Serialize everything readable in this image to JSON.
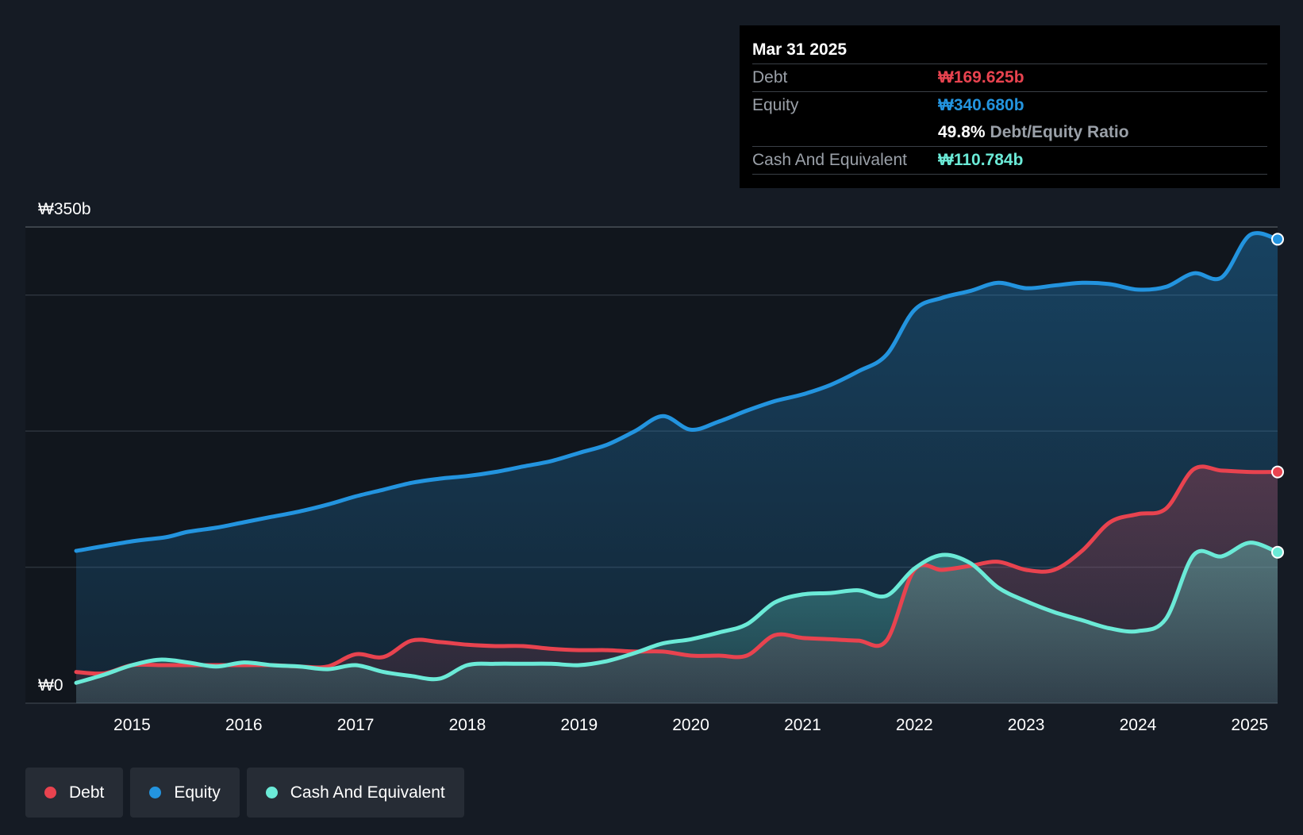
{
  "chart_data": {
    "type": "area",
    "title": "",
    "y_axis_labels": [
      "₩350b",
      "₩0"
    ],
    "ylim": [
      0,
      350
    ],
    "x_tick_labels": [
      "2015",
      "2016",
      "2017",
      "2018",
      "2019",
      "2020",
      "2021",
      "2022",
      "2023",
      "2024",
      "2025"
    ],
    "xlim": [
      2014.5,
      2025.25
    ],
    "series": [
      {
        "name": "Equity",
        "color": "#2394df",
        "x": [
          2014.5,
          2015.0,
          2015.3,
          2015.5,
          2015.75,
          2016.0,
          2016.25,
          2016.5,
          2016.75,
          2017.0,
          2017.25,
          2017.5,
          2017.75,
          2018.0,
          2018.25,
          2018.5,
          2018.75,
          2019.0,
          2019.25,
          2019.5,
          2019.75,
          2020.0,
          2020.25,
          2020.5,
          2020.75,
          2021.0,
          2021.25,
          2021.5,
          2021.75,
          2022.0,
          2022.25,
          2022.5,
          2022.75,
          2023.0,
          2023.25,
          2023.5,
          2023.75,
          2024.0,
          2024.25,
          2024.5,
          2024.75,
          2025.0,
          2025.25
        ],
        "values": [
          112,
          119,
          122,
          126,
          129,
          133,
          137,
          141,
          146,
          152,
          157,
          162,
          165,
          167,
          170,
          174,
          178,
          184,
          190,
          200,
          211,
          201,
          207,
          215,
          222,
          227,
          234,
          244,
          256,
          289,
          298,
          303,
          309,
          305,
          307,
          309,
          308,
          304,
          306,
          316,
          313,
          344,
          341
        ]
      },
      {
        "name": "Debt",
        "color": "#e8434f",
        "x": [
          2014.5,
          2014.75,
          2015.0,
          2015.25,
          2015.5,
          2015.75,
          2016.0,
          2016.25,
          2016.5,
          2016.75,
          2017.0,
          2017.25,
          2017.5,
          2017.75,
          2018.0,
          2018.25,
          2018.5,
          2018.75,
          2019.0,
          2019.25,
          2019.5,
          2019.75,
          2020.0,
          2020.25,
          2020.5,
          2020.75,
          2021.0,
          2021.25,
          2021.5,
          2021.75,
          2022.0,
          2022.25,
          2022.5,
          2022.75,
          2023.0,
          2023.25,
          2023.5,
          2023.75,
          2024.0,
          2024.25,
          2024.5,
          2024.75,
          2025.0,
          2025.25
        ],
        "values": [
          23,
          22,
          28,
          28,
          28,
          28,
          28,
          28,
          27,
          27,
          36,
          34,
          46,
          45,
          43,
          42,
          42,
          40,
          39,
          39,
          38,
          38,
          35,
          35,
          35,
          50,
          48,
          47,
          46,
          46,
          98,
          98,
          101,
          104,
          98,
          98,
          112,
          133,
          139,
          143,
          172,
          171,
          170,
          170
        ]
      },
      {
        "name": "Cash And Equivalent",
        "color": "#6bead7",
        "x": [
          2014.5,
          2014.75,
          2015.0,
          2015.25,
          2015.5,
          2015.75,
          2016.0,
          2016.25,
          2016.5,
          2016.75,
          2017.0,
          2017.25,
          2017.5,
          2017.75,
          2018.0,
          2018.25,
          2018.5,
          2018.75,
          2019.0,
          2019.25,
          2019.5,
          2019.75,
          2020.0,
          2020.25,
          2020.5,
          2020.75,
          2021.0,
          2021.25,
          2021.5,
          2021.75,
          2022.0,
          2022.25,
          2022.5,
          2022.75,
          2023.0,
          2023.25,
          2023.5,
          2023.75,
          2024.0,
          2024.25,
          2024.5,
          2024.75,
          2025.0,
          2025.25
        ],
        "values": [
          15,
          21,
          28,
          32,
          30,
          27,
          30,
          28,
          27,
          25,
          28,
          23,
          20,
          18,
          28,
          29,
          29,
          29,
          28,
          31,
          37,
          44,
          47,
          52,
          58,
          74,
          80,
          81,
          83,
          79,
          99,
          109,
          103,
          85,
          75,
          67,
          61,
          55,
          53,
          62,
          109,
          108,
          118,
          111
        ]
      }
    ],
    "tooltip": {
      "date": "Mar 31 2025",
      "debt_label": "Debt",
      "debt_value": "₩169.625b",
      "equity_label": "Equity",
      "equity_value": "₩340.680b",
      "ratio_value": "49.8%",
      "ratio_label": "Debt/Equity Ratio",
      "cash_label": "Cash And Equivalent",
      "cash_value": "₩110.784b"
    },
    "legend": [
      "Debt",
      "Equity",
      "Cash And Equivalent"
    ],
    "grid": true
  },
  "colors": {
    "background": "#151b24",
    "debt": "#e8434f",
    "equity": "#2394df",
    "cash": "#6bead7"
  }
}
